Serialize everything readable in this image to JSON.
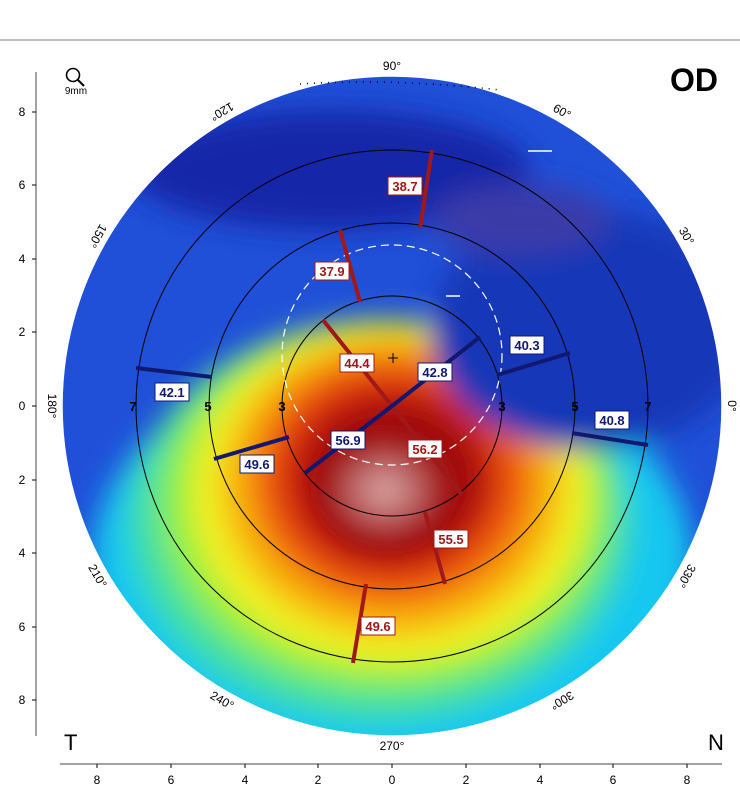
{
  "header": {
    "eye": "OD",
    "temporal": "T",
    "nasal": "N",
    "zoom_label": "9mm"
  },
  "axis_labels": {
    "x_ticks": [
      "8",
      "6",
      "4",
      "2",
      "0",
      "2",
      "4",
      "6",
      "8"
    ],
    "y_ticks": [
      "8",
      "6",
      "4",
      "2",
      "0",
      "2",
      "4",
      "6",
      "8"
    ]
  },
  "angle_labels": [
    {
      "deg": 90,
      "text": "90°"
    },
    {
      "deg": 60,
      "text": "60°"
    },
    {
      "deg": 30,
      "text": "30°"
    },
    {
      "deg": 0,
      "text": "0°"
    },
    {
      "deg": 330,
      "text": "330°"
    },
    {
      "deg": 300,
      "text": "300°"
    },
    {
      "deg": 270,
      "text": "270°"
    },
    {
      "deg": 240,
      "text": "240°"
    },
    {
      "deg": 210,
      "text": "210°"
    },
    {
      "deg": 180,
      "text": "180°"
    },
    {
      "deg": 150,
      "text": "150°"
    },
    {
      "deg": 120,
      "text": "120°"
    }
  ],
  "zone_labels": [
    "7",
    "5",
    "3",
    "3",
    "5",
    "7"
  ],
  "keratometry": {
    "steep_color": "#a01818",
    "flat_color": "#101870",
    "steep_readings": [
      {
        "zone": "7mm superior",
        "value": "38.7"
      },
      {
        "zone": "5mm superior",
        "value": "37.9"
      },
      {
        "zone": "3mm superior",
        "value": "44.4"
      },
      {
        "zone": "3mm inferior",
        "value": "56.2"
      },
      {
        "zone": "5mm inferior",
        "value": "55.5"
      },
      {
        "zone": "7mm inferior",
        "value": "49.6"
      }
    ],
    "flat_readings": [
      {
        "zone": "7mm temporal",
        "value": "42.1"
      },
      {
        "zone": "5mm temporal",
        "value": "49.6"
      },
      {
        "zone": "3mm temporal",
        "value": "56.9"
      },
      {
        "zone": "3mm nasal",
        "value": "42.8"
      },
      {
        "zone": "5mm nasal",
        "value": "40.3"
      },
      {
        "zone": "7mm nasal",
        "value": "40.8"
      }
    ]
  }
}
